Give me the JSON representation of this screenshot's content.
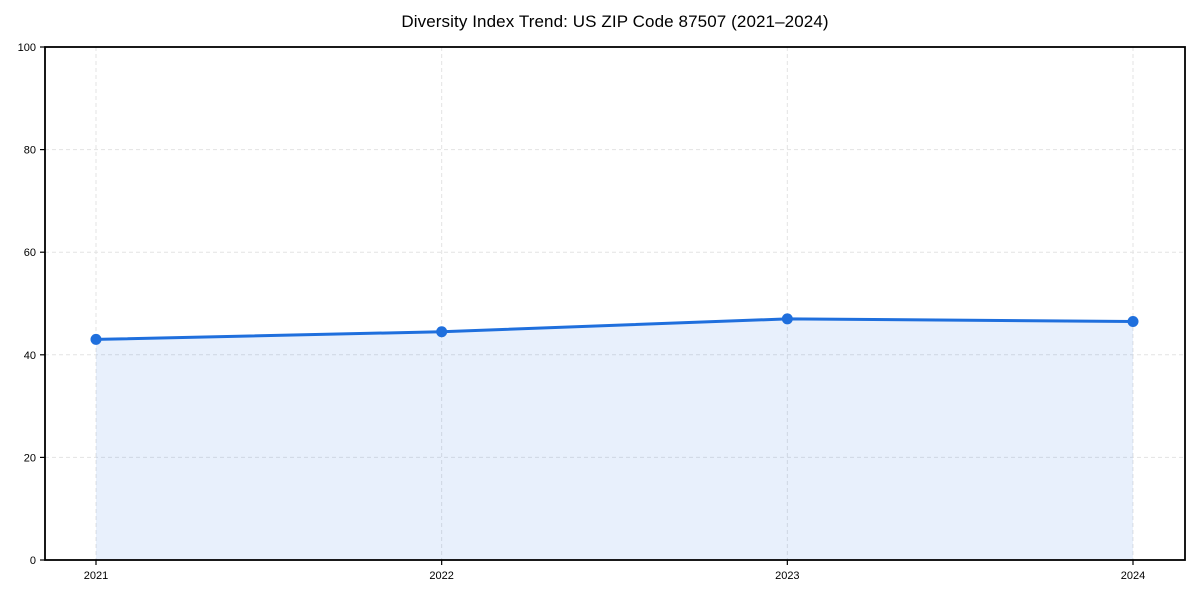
{
  "chart_data": {
    "type": "area",
    "title": "Diversity Index Trend: US ZIP Code 87507 (2021–2024)",
    "x_categories": [
      "2021",
      "2022",
      "2023",
      "2024"
    ],
    "values": [
      43,
      44.5,
      47,
      46.5
    ],
    "xlabel": "",
    "ylabel": "",
    "ylim": [
      0,
      100
    ],
    "yticks": [
      0,
      20,
      40,
      60,
      80,
      100
    ],
    "grid": true,
    "legend_position": "none",
    "marker": "circle",
    "colors": {
      "line": "#1f6fdd",
      "marker": "#1f6fdd",
      "area_fill": "#1f6fdd",
      "area_opacity": "0.1",
      "grid": "#e3e3e3",
      "spine": "#000000",
      "tick_text": "#000000",
      "background": "#ffffff"
    }
  }
}
